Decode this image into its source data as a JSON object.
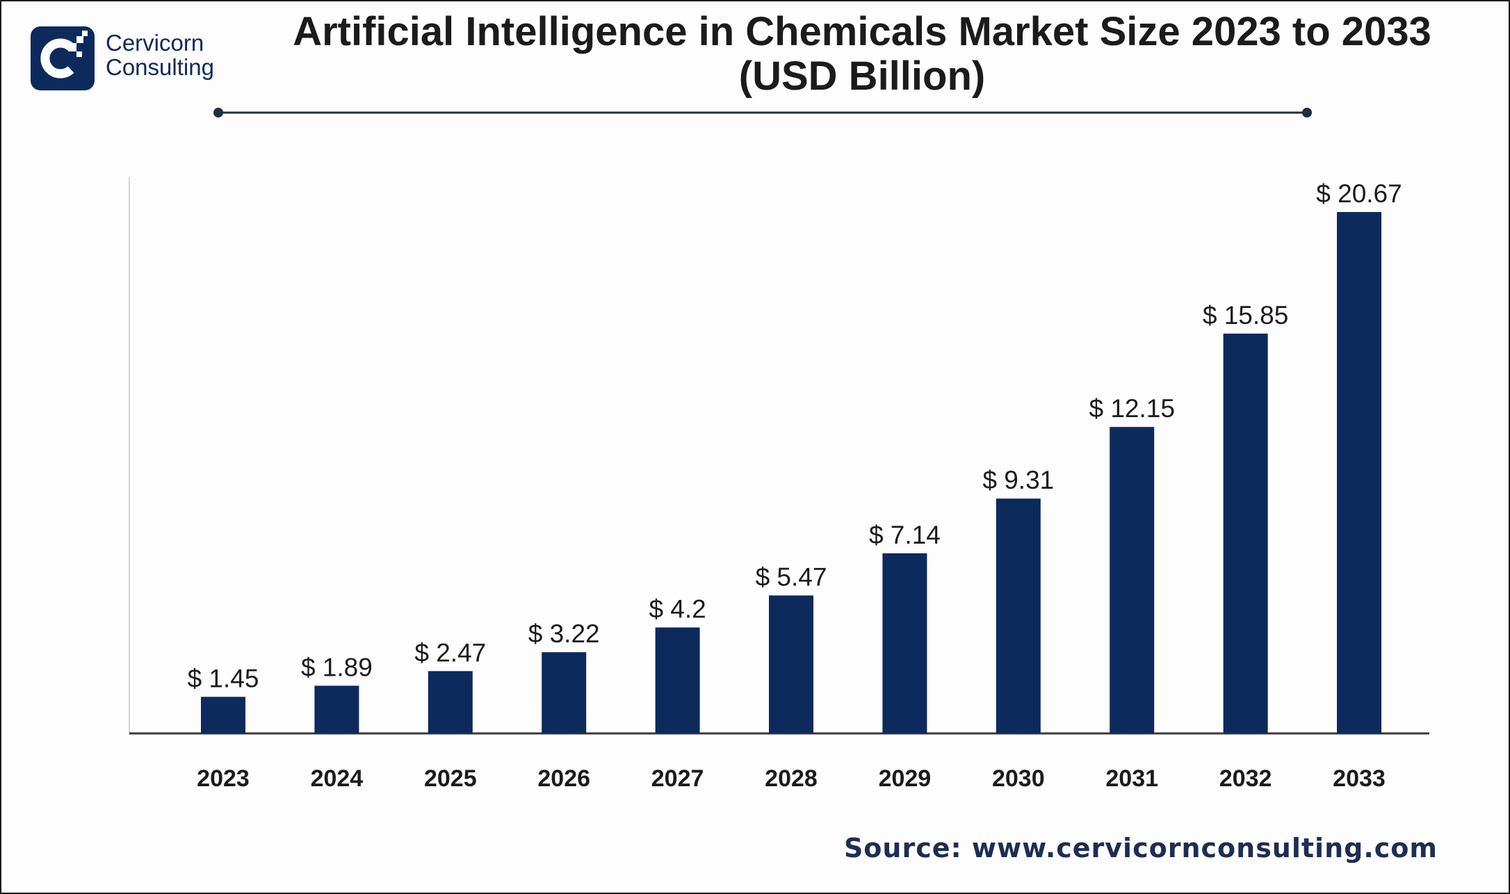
{
  "brand": {
    "name_line1": "Cervicorn",
    "name_line2": "Consulting",
    "color": "#0d2a5c"
  },
  "title": {
    "line1": "Artificial Intelligence in Chemicals Market Size 2023 to 2033",
    "line2": "(USD Billion)"
  },
  "source": "Source: www.cervicornconsulting.com",
  "chart_data": {
    "type": "bar",
    "title": "Artificial Intelligence in Chemicals Market Size 2023 to 2033 (USD Billion)",
    "xlabel": "",
    "ylabel": "",
    "categories": [
      "2023",
      "2024",
      "2025",
      "2026",
      "2027",
      "2028",
      "2029",
      "2030",
      "2031",
      "2032",
      "2033"
    ],
    "values": [
      1.45,
      1.89,
      2.47,
      3.22,
      4.2,
      5.47,
      7.14,
      9.31,
      12.15,
      15.85,
      20.67
    ],
    "data_labels": [
      "$ 1.45",
      "$ 1.89",
      "$ 2.47",
      "$ 3.22",
      "$ 4.2",
      "$ 5.47",
      "$ 7.14",
      "$ 9.31",
      "$ 12.15",
      "$ 15.85",
      "$ 20.67"
    ],
    "ylim": [
      0,
      20.67
    ],
    "grid": false,
    "legend": "none",
    "bar_color": "#0d2a5c"
  }
}
